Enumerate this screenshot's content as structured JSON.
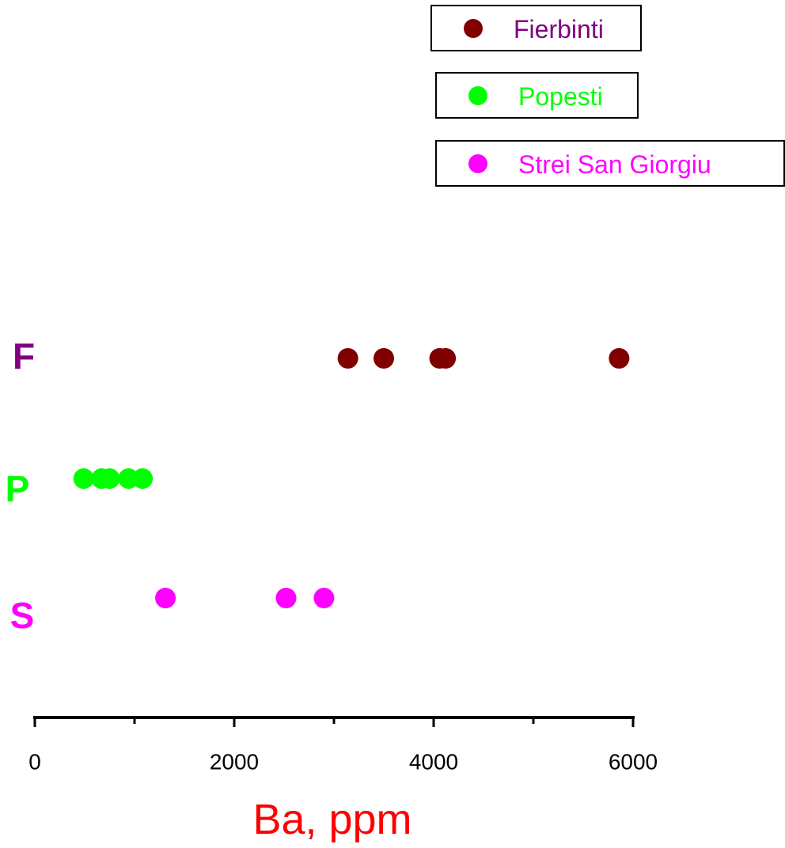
{
  "chart_data": {
    "type": "strip",
    "x_label": "Ba, ppm",
    "xlim": [
      0,
      6000
    ],
    "xticks": [
      0,
      2000,
      4000,
      6000
    ],
    "xminorticks": [
      1000,
      3000,
      5000
    ],
    "series": [
      {
        "name": "Fierbinti",
        "label": "F",
        "color": "#800000",
        "label_color": "#800080",
        "values": [
          3140,
          3500,
          4060,
          4120,
          5860
        ]
      },
      {
        "name": "Popesti",
        "label": "P",
        "color": "#00ff00",
        "label_color": "#00ff00",
        "values": [
          490,
          670,
          750,
          940,
          1080
        ]
      },
      {
        "name": "Strei San Giorgiu",
        "label": "S",
        "color": "#ff00ff",
        "label_color": "#ff00ff",
        "values": [
          1310,
          2520,
          2900
        ]
      }
    ]
  }
}
